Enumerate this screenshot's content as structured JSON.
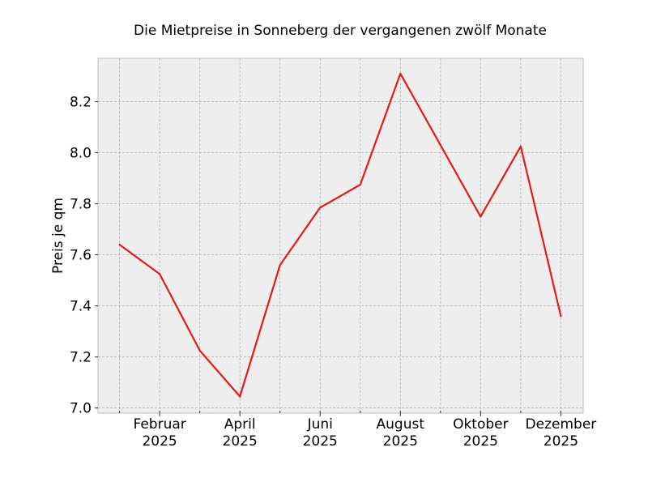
{
  "chart_data": {
    "type": "line",
    "title": "Die Mietpreise in Sonneberg der vergangenen zwölf Monate",
    "xlabel": "",
    "ylabel": "Preis je qm",
    "x": [
      "2025-01",
      "2025-02",
      "2025-03",
      "2025-04",
      "2025-05",
      "2025-06",
      "2025-07",
      "2025-08",
      "2025-09",
      "2025-10",
      "2025-11",
      "2025-12"
    ],
    "x_tick_labels": [
      {
        "x": "2025-02",
        "line1": "Februar",
        "line2": "2025"
      },
      {
        "x": "2025-04",
        "line1": "April",
        "line2": "2025"
      },
      {
        "x": "2025-06",
        "line1": "Juni",
        "line2": "2025"
      },
      {
        "x": "2025-08",
        "line1": "August",
        "line2": "2025"
      },
      {
        "x": "2025-10",
        "line1": "Oktober",
        "line2": "2025"
      },
      {
        "x": "2025-12",
        "line1": "Dezember",
        "line2": "2025"
      }
    ],
    "series": [
      {
        "values": [
          7.64,
          7.525,
          7.225,
          7.045,
          7.56,
          7.785,
          7.875,
          8.31,
          8.03,
          7.75,
          8.025,
          7.36
        ],
        "color": "#e41a1c"
      }
    ],
    "ylim": [
      6.98,
      8.37
    ],
    "yticks": [
      7.0,
      7.2,
      7.4,
      7.6,
      7.8,
      8.0,
      8.2
    ],
    "ytick_labels": [
      "7.0",
      "7.2",
      "7.4",
      "7.6",
      "7.8",
      "8.0",
      "8.2"
    ],
    "grid": true,
    "legend": "none",
    "plot_background": "#eeeeee",
    "grid_color": "#b0b0b0",
    "frame_color": "#bcbcbc"
  }
}
